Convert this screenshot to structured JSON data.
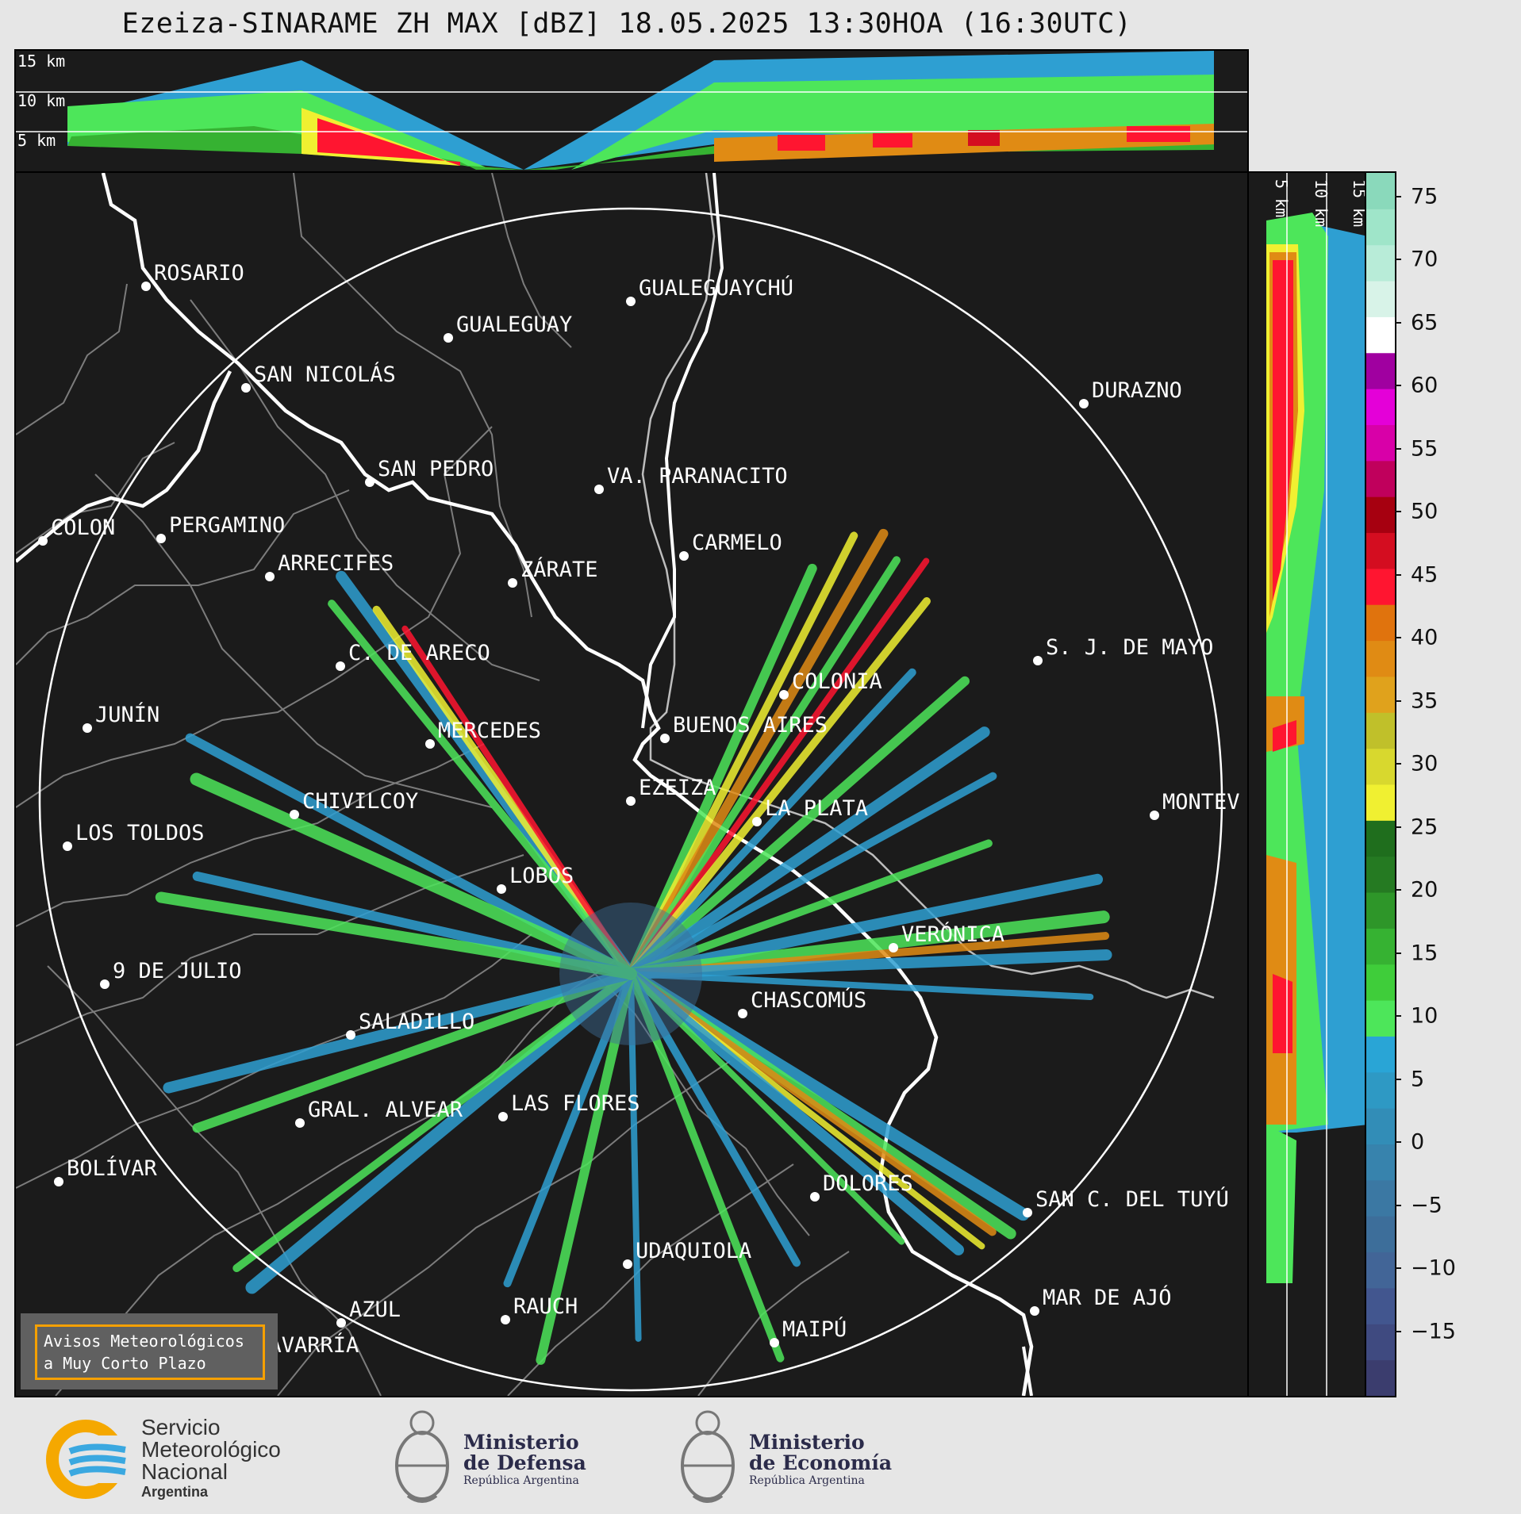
{
  "title": "Ezeiza-SINARAME ZH MAX [dBZ] 18.05.2025 13:30HOA (16:30UTC)",
  "top_panel": {
    "height_labels": [
      "15 km",
      "10 km",
      "5 km"
    ]
  },
  "side_panel": {
    "height_labels": [
      "5 km",
      "10 km",
      "15 km"
    ]
  },
  "colorbar": {
    "ticks": [
      "75",
      "70",
      "65",
      "60",
      "55",
      "50",
      "45",
      "40",
      "35",
      "30",
      "25",
      "20",
      "15",
      "10",
      "5",
      "0",
      "−5",
      "−10",
      "−15"
    ],
    "colors": [
      "#3b3d6e",
      "#3f4a80",
      "#42568f",
      "#426597",
      "#3d6e9a",
      "#3b78a3",
      "#3783ad",
      "#328db7",
      "#2e99c4",
      "#29a5d6",
      "#4de65a",
      "#3fcd3a",
      "#36b232",
      "#2e9629",
      "#257a22",
      "#1f6e1d",
      "#f0f031",
      "#d8d82e",
      "#c0c02a",
      "#e0a21c",
      "#e08b14",
      "#e0730d",
      "#ff1530",
      "#d40d20",
      "#a60010",
      "#c0005c",
      "#d800a8",
      "#e400d8",
      "#a000a0",
      "#ffffff",
      "#d8f3e8",
      "#b8ecd8",
      "#9fe5c9",
      "#8ad9bb"
    ],
    "value_min": -20,
    "value_max": 77
  },
  "cities": [
    {
      "name": "ROSARIO"
    },
    {
      "name": "GUALEGUAYCHÚ"
    },
    {
      "name": "GUALEGUAY"
    },
    {
      "name": "SAN NICOLÁS"
    },
    {
      "name": "DURAZNO"
    },
    {
      "name": "SAN PEDRO"
    },
    {
      "name": "VA. PARANACITO"
    },
    {
      "name": "COLON"
    },
    {
      "name": "PERGAMINO"
    },
    {
      "name": "CARMELO"
    },
    {
      "name": "ARRECIFES"
    },
    {
      "name": "ZÁRATE"
    },
    {
      "name": "S. J. DE MAYO"
    },
    {
      "name": "C. DE ARECO"
    },
    {
      "name": "COLONIA"
    },
    {
      "name": "JUNÍN"
    },
    {
      "name": "BUENOS AIRES"
    },
    {
      "name": "MERCEDES"
    },
    {
      "name": "EZEIZA"
    },
    {
      "name": "MONTEV"
    },
    {
      "name": "CHIVILCOY"
    },
    {
      "name": "LA PLATA"
    },
    {
      "name": "LOS TOLDOS"
    },
    {
      "name": "LOBOS"
    },
    {
      "name": "VERÓNICA"
    },
    {
      "name": "9 DE JULIO"
    },
    {
      "name": "CHASCOMÚS"
    },
    {
      "name": "SALADILLO"
    },
    {
      "name": "GRAL. ALVEAR"
    },
    {
      "name": "LAS FLORES"
    },
    {
      "name": "BOLÍVAR"
    },
    {
      "name": "DOLORES"
    },
    {
      "name": "SAN C. DEL TUYÚ"
    },
    {
      "name": "UDAQUIOLA"
    },
    {
      "name": "MAR DE AJÓ"
    },
    {
      "name": "AZUL"
    },
    {
      "name": "RAUCH"
    },
    {
      "name": "OLAVARRÍA"
    },
    {
      "name": "MAIPÚ"
    }
  ],
  "warning_box": {
    "line1": "Avisos Meteorológicos",
    "line2": "a Muy Corto Plazo"
  },
  "footer": {
    "smn": {
      "line1": "Servicio",
      "line2": "Meteorológico",
      "line3": "Nacional",
      "line4": "Argentina"
    },
    "defensa": {
      "line1": "Ministerio",
      "line2": "de Defensa",
      "line3": "República Argentina"
    },
    "economia": {
      "line1": "Ministerio",
      "line2": "de Economía",
      "line3": "República Argentina"
    }
  }
}
